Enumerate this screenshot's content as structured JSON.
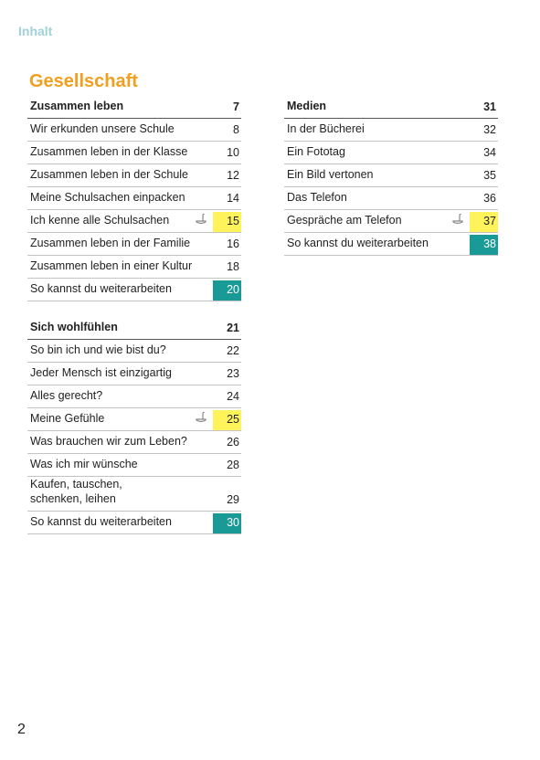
{
  "header": {
    "title": "Inhalt"
  },
  "section_title": "Gesellschaft",
  "columns": [
    [
      {
        "title": "Zusammen leben",
        "page": 7,
        "rows": [
          {
            "label": "Wir erkunden unsere Schule",
            "page": 8
          },
          {
            "label": "Zusammen leben in der Klasse",
            "page": 10
          },
          {
            "label": "Zusammen leben in der Schule",
            "page": 12
          },
          {
            "label": "Meine Schulsachen einpacken",
            "page": 14
          },
          {
            "label": "Ich kenne alle Schulsachen",
            "page": 15,
            "highlight": "#fff35c",
            "icon": true
          },
          {
            "label": "Zusammen leben in der Familie",
            "page": 16
          },
          {
            "label": "Zusammen leben in einer Kultur",
            "page": 18
          },
          {
            "label": "So kannst du weiterarbeiten",
            "page": 20,
            "highlight": "#1a9a96",
            "text_color": "#ffffff"
          }
        ]
      },
      {
        "title": "Sich wohlfühlen",
        "page": 21,
        "rows": [
          {
            "label": "So bin ich und wie bist du?",
            "page": 22
          },
          {
            "label": "Jeder Mensch ist einzigartig",
            "page": 23
          },
          {
            "label": "Alles gerecht?",
            "page": 24
          },
          {
            "label": "Meine Gefühle",
            "page": 25,
            "highlight": "#fff35c",
            "icon": true
          },
          {
            "label": "Was brauchen wir zum Leben?",
            "page": 26
          },
          {
            "label": "Was ich mir wünsche",
            "page": 28
          },
          {
            "label": "Kaufen, tauschen,\nschenken, leihen",
            "page": 29
          },
          {
            "label": "So kannst du weiterarbeiten",
            "page": 30,
            "highlight": "#1a9a96",
            "text_color": "#ffffff"
          }
        ]
      }
    ],
    [
      {
        "title": "Medien",
        "page": 31,
        "rows": [
          {
            "label": "In der Bücherei",
            "page": 32
          },
          {
            "label": "Ein Fototag",
            "page": 34
          },
          {
            "label": "Ein Bild vertonen",
            "page": 35
          },
          {
            "label": "Das Telefon",
            "page": 36
          },
          {
            "label": "Gespräche am Telefon",
            "page": 37,
            "highlight": "#fff35c",
            "icon": true
          },
          {
            "label": "So kannst du weiterarbeiten",
            "page": 38,
            "highlight": "#1a9a96",
            "text_color": "#ffffff"
          }
        ]
      }
    ]
  ],
  "page_number": 2
}
